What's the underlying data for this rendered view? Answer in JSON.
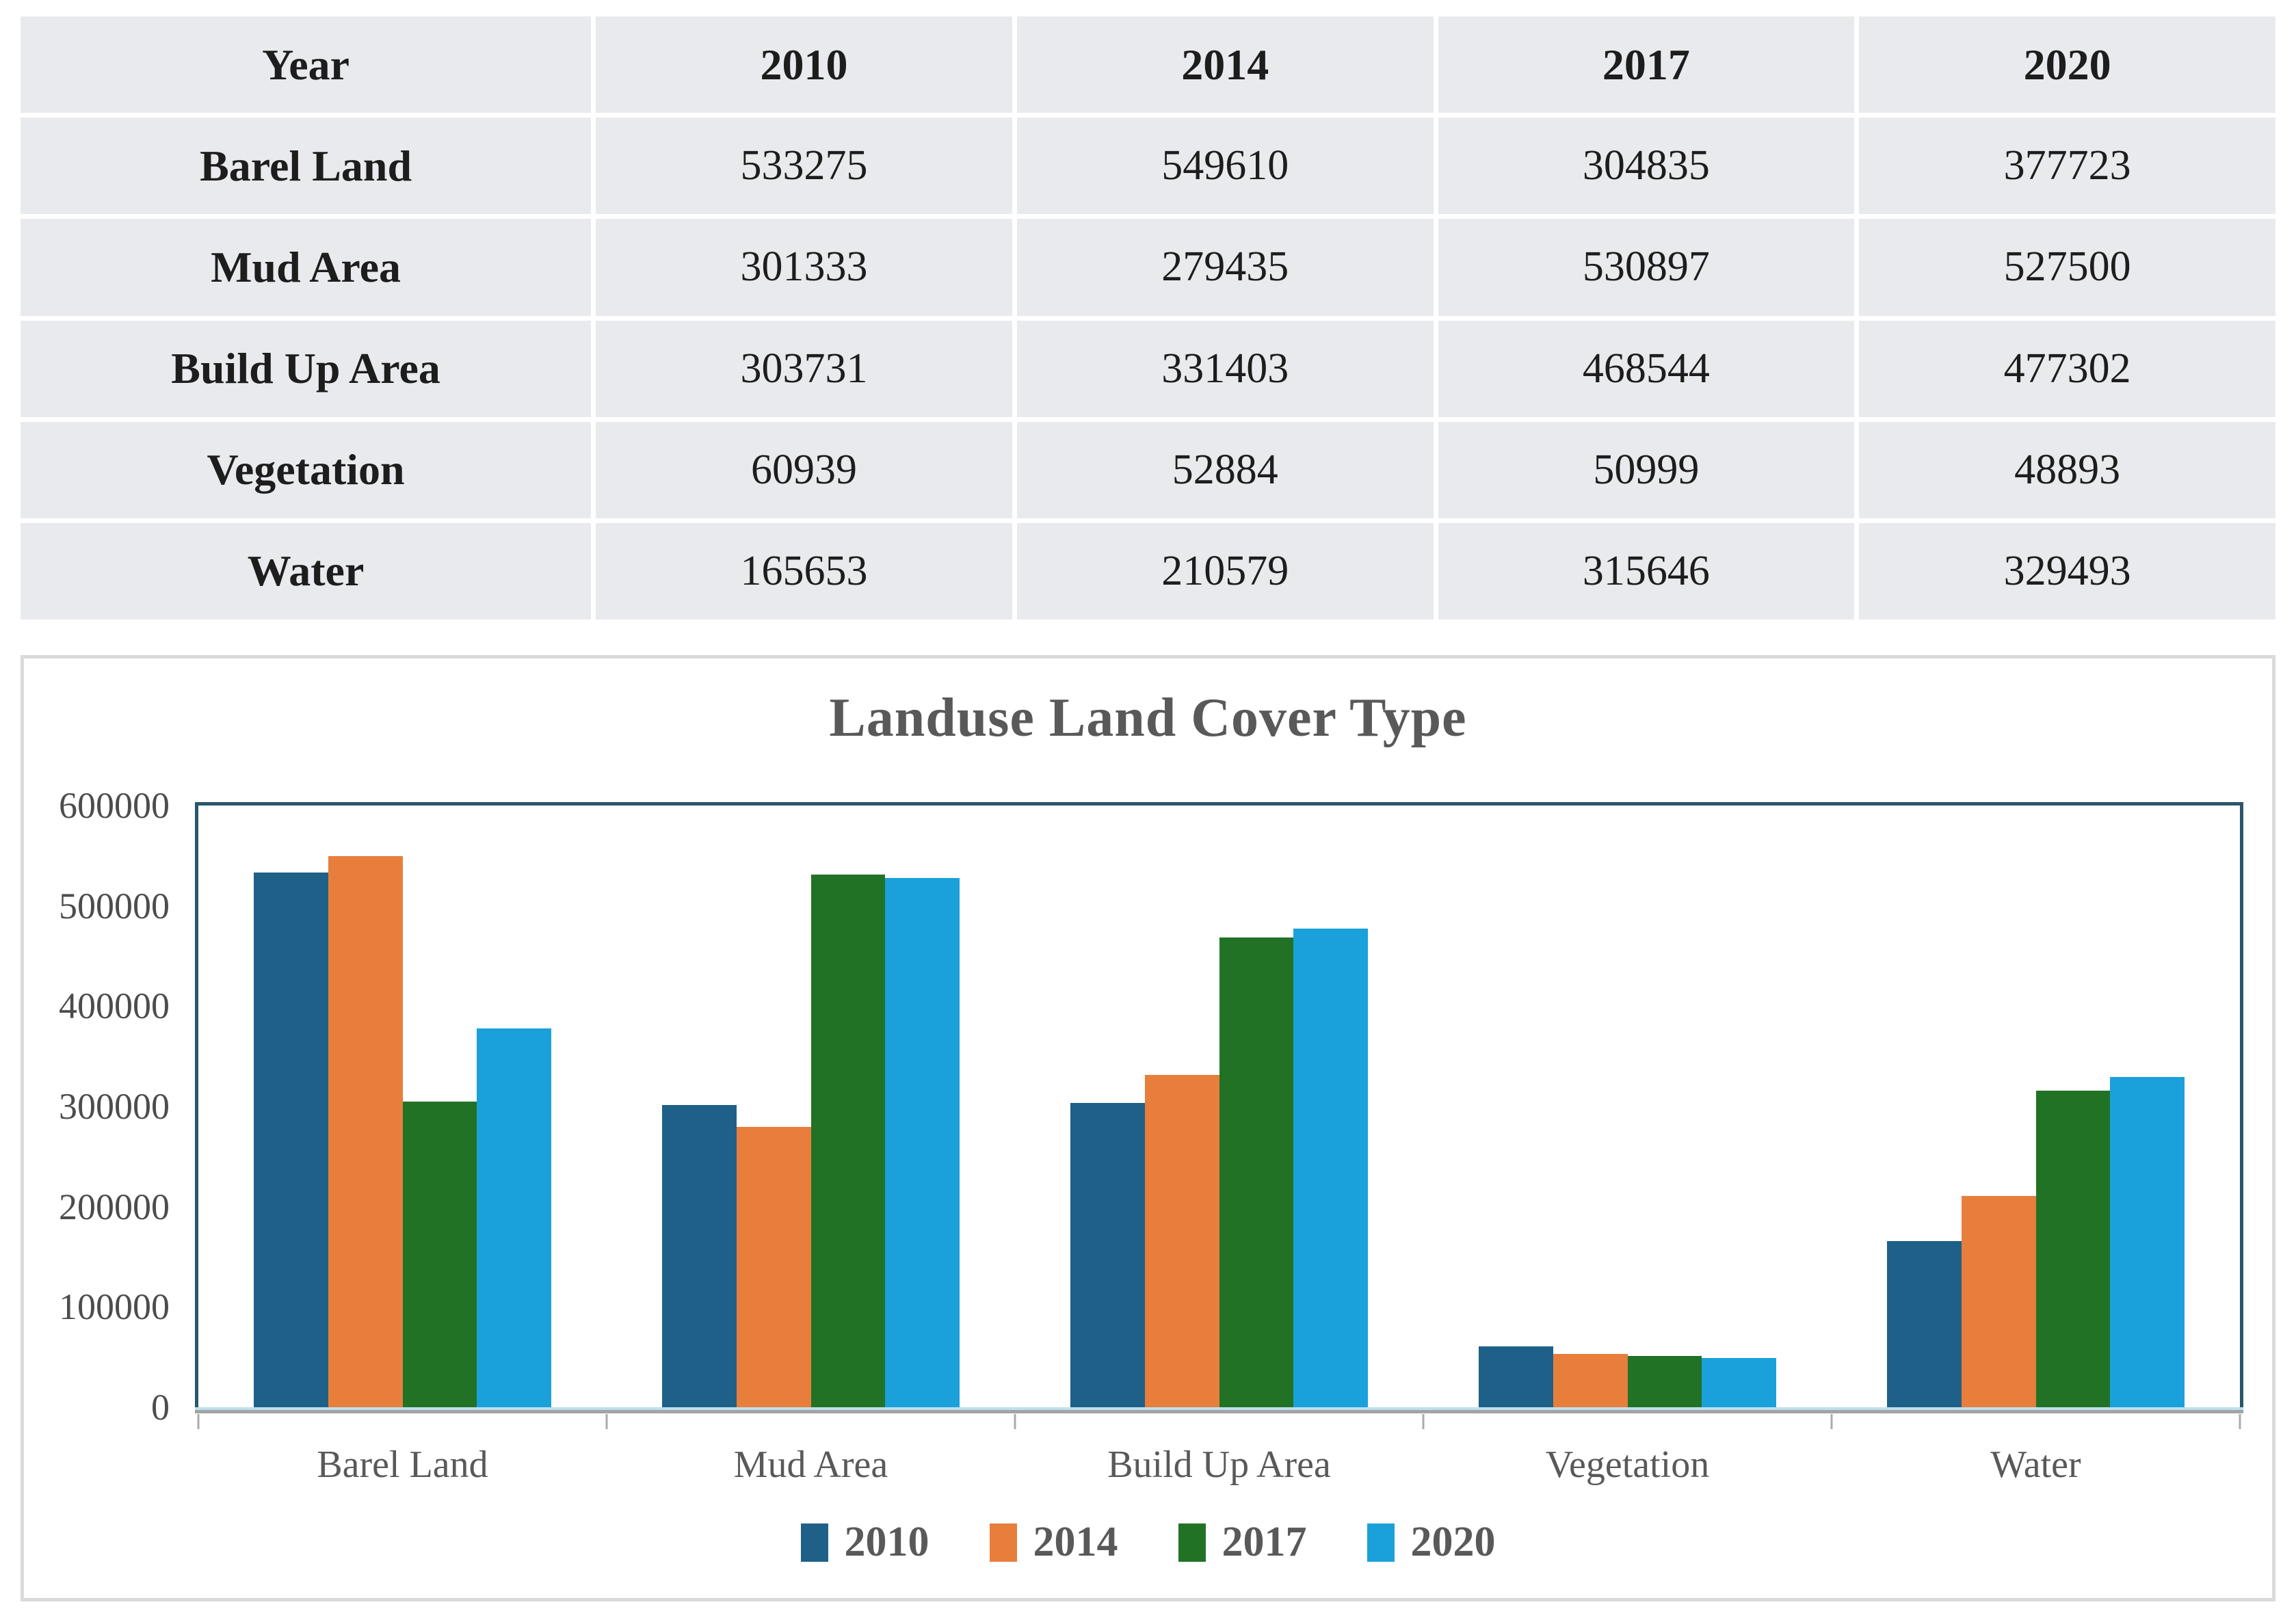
{
  "table": {
    "header": [
      "Year",
      "2010",
      "2014",
      "2017",
      "2020"
    ],
    "rows": [
      {
        "label": "Barel Land",
        "values": [
          "533275",
          "549610",
          "304835",
          "377723"
        ]
      },
      {
        "label": "Mud Area",
        "values": [
          "301333",
          "279435",
          "530897",
          "527500"
        ]
      },
      {
        "label": "Build Up Area",
        "values": [
          "303731",
          "331403",
          "468544",
          "477302"
        ]
      },
      {
        "label": "Vegetation",
        "values": [
          "60939",
          "52884",
          "50999",
          "48893"
        ]
      },
      {
        "label": "Water",
        "values": [
          "165653",
          "210579",
          "315646",
          "329493"
        ]
      }
    ]
  },
  "chart_data": {
    "type": "bar",
    "title": "Landuse Land Cover Type",
    "categories": [
      "Barel Land",
      "Mud Area",
      "Build Up Area",
      "Vegetation",
      "Water"
    ],
    "series": [
      {
        "name": "2010",
        "color": "#1E6088",
        "values": [
          533275,
          301333,
          303731,
          60939,
          165653
        ]
      },
      {
        "name": "2014",
        "color": "#E87E3C",
        "values": [
          549610,
          279435,
          331403,
          52884,
          210579
        ]
      },
      {
        "name": "2017",
        "color": "#227226",
        "values": [
          304835,
          530897,
          468544,
          50999,
          315646
        ]
      },
      {
        "name": "2020",
        "color": "#1AA1DB",
        "values": [
          377723,
          527500,
          477302,
          48893,
          329493
        ]
      }
    ],
    "xlabel": "",
    "ylabel": "",
    "ylim": [
      0,
      600000
    ],
    "ytick_step": 100000,
    "yticks": [
      "600000",
      "500000",
      "400000",
      "300000",
      "200000",
      "100000",
      "0"
    ],
    "grid": false,
    "legend_position": "bottom"
  },
  "colors": {
    "table_cell_bg": "#E9EAED",
    "table_text": "#1D1D1D",
    "figure_border": "#DADADA",
    "plot_border": "#2A566B",
    "axis_line": "#A3A3A3",
    "axis_line_light": "#BDE0EF",
    "title_text": "#595959",
    "tick_text": "#4C4C4C"
  }
}
